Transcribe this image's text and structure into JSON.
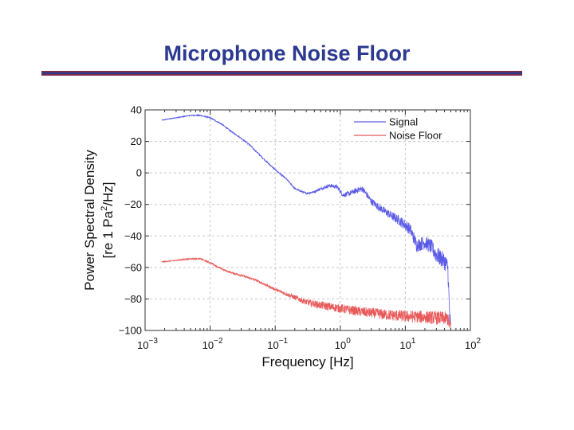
{
  "slide": {
    "title": "Microphone Noise Floor",
    "rule_color": "#7a2a4d",
    "rule_accent": "#2b3990"
  },
  "chart_data": {
    "type": "line",
    "xscale": "log",
    "xlim": [
      0.001,
      100
    ],
    "ylim": [
      -100,
      40
    ],
    "xlabel": "Frequency [Hz]",
    "ylabel_line1": "Power Spectral Density",
    "ylabel_line2_prefix": "[re 1 Pa",
    "ylabel_line2_sup": "2",
    "ylabel_line2_suffix": "/Hz]",
    "grid": true,
    "legend_position": "top-right",
    "y_ticks": [
      {
        "value": 40,
        "label": "40"
      },
      {
        "value": 20,
        "label": "20"
      },
      {
        "value": 0,
        "label": "0"
      },
      {
        "value": -20,
        "label": "−20"
      },
      {
        "value": -40,
        "label": "−40"
      },
      {
        "value": -60,
        "label": "−60"
      },
      {
        "value": -80,
        "label": "−80"
      },
      {
        "value": -100,
        "label": "−100"
      }
    ],
    "x_ticks": [
      {
        "value": 0.001,
        "base": "10",
        "exp": "-3"
      },
      {
        "value": 0.01,
        "base": "10",
        "exp": "-2"
      },
      {
        "value": 0.1,
        "base": "10",
        "exp": "-1"
      },
      {
        "value": 1,
        "base": "10",
        "exp": "0"
      },
      {
        "value": 10,
        "base": "10",
        "exp": "1"
      },
      {
        "value": 100,
        "base": "10",
        "exp": "2"
      }
    ],
    "series": [
      {
        "name": "Signal",
        "color": "#5a5ae6",
        "noise": [
          [
            0.001,
            0.2
          ],
          [
            0.3,
            0.6
          ],
          [
            5,
            2.5
          ],
          [
            50,
            6
          ]
        ],
        "points": [
          [
            0.0018,
            33.5
          ],
          [
            0.003,
            35
          ],
          [
            0.005,
            36.5
          ],
          [
            0.007,
            36.5
          ],
          [
            0.01,
            35
          ],
          [
            0.015,
            31
          ],
          [
            0.02,
            27
          ],
          [
            0.03,
            22
          ],
          [
            0.04,
            18
          ],
          [
            0.05,
            14
          ],
          [
            0.07,
            8
          ],
          [
            0.1,
            2
          ],
          [
            0.15,
            -4
          ],
          [
            0.2,
            -10
          ],
          [
            0.3,
            -13
          ],
          [
            0.4,
            -12
          ],
          [
            0.5,
            -10
          ],
          [
            0.7,
            -8
          ],
          [
            0.9,
            -9
          ],
          [
            1.1,
            -14
          ],
          [
            1.4,
            -13
          ],
          [
            1.8,
            -11
          ],
          [
            2.2,
            -10
          ],
          [
            3,
            -18
          ],
          [
            4,
            -22
          ],
          [
            6,
            -27
          ],
          [
            8,
            -30
          ],
          [
            10,
            -33
          ],
          [
            12,
            -36
          ],
          [
            15,
            -46
          ],
          [
            20,
            -44
          ],
          [
            25,
            -47
          ],
          [
            30,
            -52
          ],
          [
            40,
            -56
          ],
          [
            45,
            -60
          ],
          [
            48,
            -90
          ],
          [
            50,
            -100
          ]
        ]
      },
      {
        "name": "Noise Floor",
        "color": "#e85a5a",
        "noise": [
          [
            0.001,
            0.2
          ],
          [
            0.1,
            0.8
          ],
          [
            0.5,
            2.5
          ],
          [
            5,
            3.5
          ],
          [
            50,
            4.5
          ]
        ],
        "points": [
          [
            0.0018,
            -56.5
          ],
          [
            0.003,
            -55.5
          ],
          [
            0.005,
            -54.5
          ],
          [
            0.007,
            -54.5
          ],
          [
            0.01,
            -57
          ],
          [
            0.015,
            -61
          ],
          [
            0.02,
            -63
          ],
          [
            0.03,
            -65
          ],
          [
            0.05,
            -68
          ],
          [
            0.1,
            -74
          ],
          [
            0.2,
            -79
          ],
          [
            0.3,
            -82
          ],
          [
            0.5,
            -84
          ],
          [
            1,
            -86
          ],
          [
            2,
            -88
          ],
          [
            5,
            -90
          ],
          [
            10,
            -91
          ],
          [
            20,
            -91.5
          ],
          [
            30,
            -92
          ],
          [
            45,
            -92.5
          ],
          [
            48,
            -96
          ],
          [
            50,
            -100
          ]
        ]
      }
    ]
  }
}
